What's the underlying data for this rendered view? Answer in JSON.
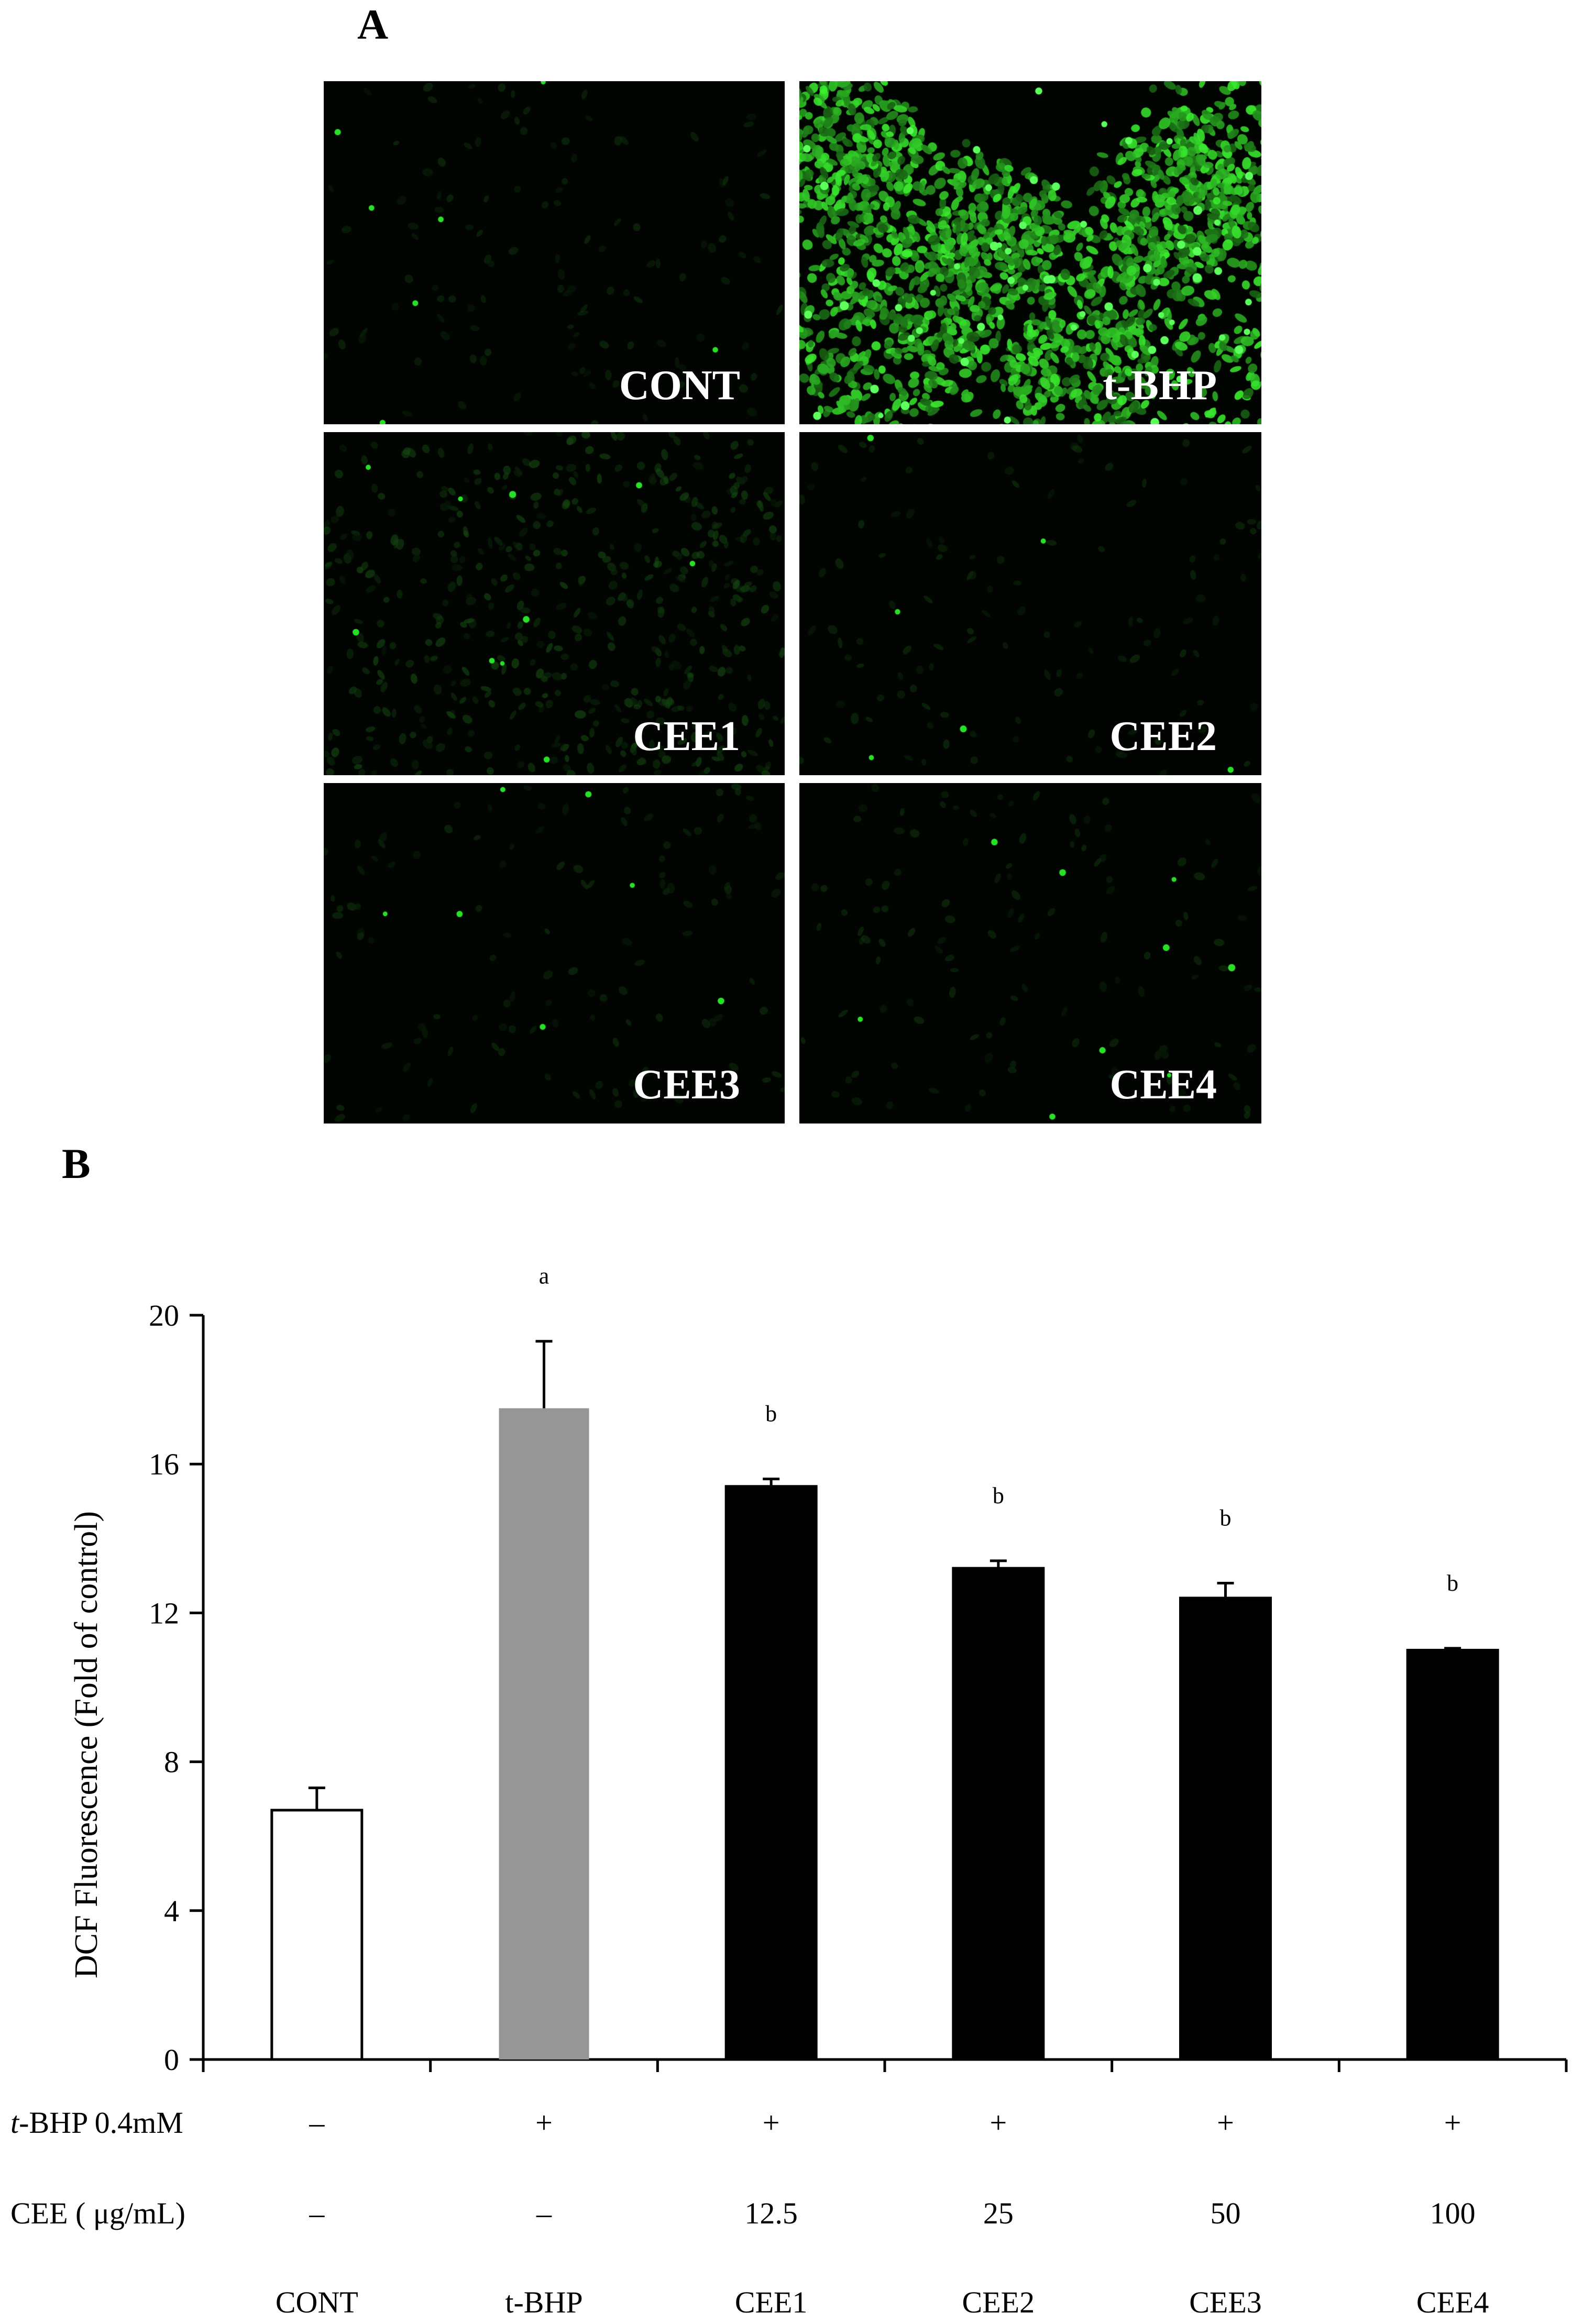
{
  "panel_a": {
    "letter": "A",
    "tiles": [
      {
        "label": "CONT",
        "intensity": "low"
      },
      {
        "label": "t-BHP",
        "intensity": "high"
      },
      {
        "label": "CEE1",
        "intensity": "medium"
      },
      {
        "label": "CEE2",
        "intensity": "low"
      },
      {
        "label": "CEE3",
        "intensity": "low"
      },
      {
        "label": "CEE4",
        "intensity": "low"
      }
    ],
    "colors": {
      "background": "#020402",
      "fluorescence": "#28e028"
    }
  },
  "panel_b": {
    "letter": "B",
    "row_labels": {
      "tbhp_prefix": "t",
      "tbhp_rest": "-BHP 0.4mM",
      "cee": "CEE ( μg/mL)"
    },
    "tbhp_row": [
      "–",
      "+",
      "+",
      "+",
      "+",
      "+"
    ],
    "cee_row": [
      "–",
      "–",
      "12.5",
      "25",
      "50",
      "100"
    ]
  },
  "chart_data": {
    "type": "bar",
    "categories": [
      "CONT",
      "t-BHP",
      "CEE1",
      "CEE2",
      "CEE3",
      "CEE4"
    ],
    "values": [
      6.7,
      17.5,
      15.4,
      13.2,
      12.4,
      11.0
    ],
    "errors": [
      0.6,
      1.8,
      0.2,
      0.2,
      0.4,
      0.05
    ],
    "significance": [
      "",
      "a",
      "b",
      "b",
      "b",
      "b"
    ],
    "bar_colors": [
      "#ffffff",
      "#969696",
      "#000000",
      "#000000",
      "#000000",
      "#000000"
    ],
    "ylabel": "DCF Fluorescence (Fold of control)",
    "xlabel": "",
    "ylim": [
      0,
      20
    ],
    "yticks": [
      0,
      4,
      8,
      12,
      16,
      20
    ],
    "grid": false,
    "legend": "none"
  }
}
